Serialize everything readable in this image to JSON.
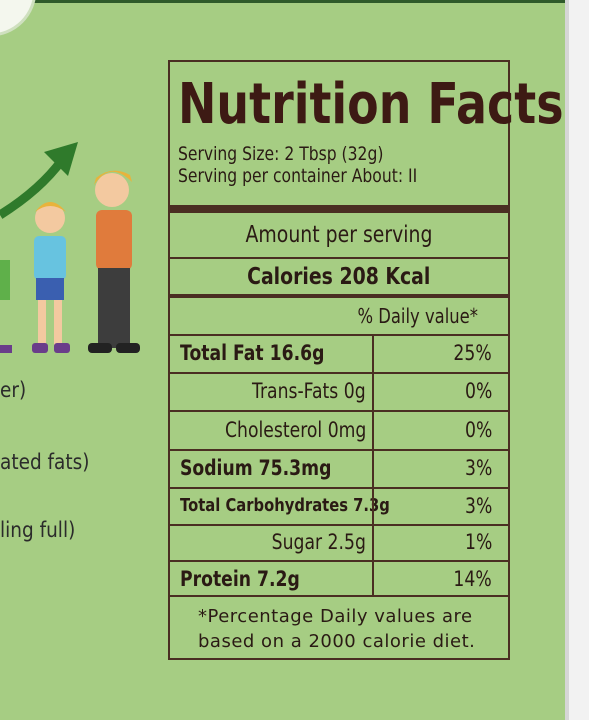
{
  "side_text": [
    "er)",
    "ated fats)",
    "ling full)"
  ],
  "label": {
    "title": "Nutrition Facts",
    "serving_size": "Serving Size: 2 Tbsp (32g)",
    "servings": "Serving per container About: II",
    "amount_header": "Amount per serving",
    "calories": "Calories 208 Kcal",
    "daily_value_header": "% Daily value*",
    "rows": [
      [
        "Total Fat 16.6g",
        "25%"
      ],
      [
        "Trans-Fats 0g",
        "0%"
      ],
      [
        "Cholesterol 0mg",
        "0%"
      ],
      [
        "Sodium 75.3mg",
        "3%"
      ],
      [
        "Total Carbohydrates 7.3g",
        "3%"
      ],
      [
        "Sugar 2.5g",
        "1%"
      ],
      [
        "Protein 7.2g",
        "14%"
      ]
    ],
    "footnote": [
      "*Percentage Daily values are",
      "based on a 2000 calorie diet."
    ]
  }
}
